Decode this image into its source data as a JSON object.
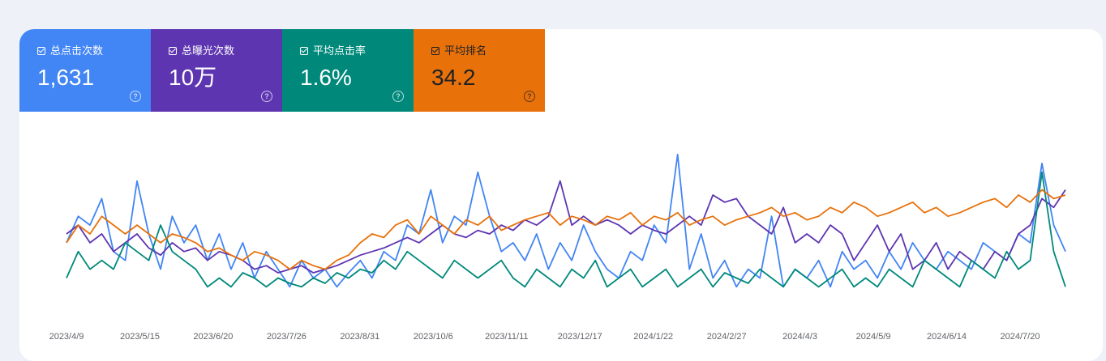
{
  "metrics": [
    {
      "label": "总点击次数",
      "value": "1,631",
      "color": "#4285f4",
      "text_dark": false
    },
    {
      "label": "总曝光次数",
      "value": "10万",
      "color": "#5e35b1",
      "text_dark": false
    },
    {
      "label": "平均点击率",
      "value": "1.6%",
      "color": "#00897b",
      "text_dark": false
    },
    {
      "label": "平均排名",
      "value": "34.2",
      "color": "#e8710a",
      "text_dark": true
    }
  ],
  "help_icon": "?",
  "chart_data": {
    "type": "line",
    "x_start": "2023/4/9",
    "x_end": "2024/8/4",
    "x_ticks": [
      "2023/4/9",
      "2023/5/15",
      "2023/6/20",
      "2023/7/26",
      "2023/8/31",
      "2023/10/6",
      "2023/11/11",
      "2023/12/17",
      "2024/1/22",
      "2024/2/27",
      "2024/4/3",
      "2024/5/9",
      "2024/6/14",
      "2024/7/20"
    ],
    "y_axis": "hidden",
    "grid": false,
    "legend": "none",
    "series": [
      {
        "name": "总点击次数",
        "color": "#4285f4",
        "points": [
          0.45,
          0.6,
          0.55,
          0.7,
          0.4,
          0.35,
          0.8,
          0.5,
          0.3,
          0.6,
          0.45,
          0.55,
          0.35,
          0.5,
          0.3,
          0.45,
          0.25,
          0.4,
          0.3,
          0.2,
          0.35,
          0.25,
          0.3,
          0.2,
          0.28,
          0.35,
          0.25,
          0.4,
          0.35,
          0.55,
          0.5,
          0.75,
          0.45,
          0.6,
          0.55,
          0.85,
          0.6,
          0.4,
          0.45,
          0.35,
          0.5,
          0.3,
          0.45,
          0.35,
          0.55,
          0.4,
          0.3,
          0.25,
          0.4,
          0.35,
          0.55,
          0.45,
          0.95,
          0.3,
          0.5,
          0.25,
          0.35,
          0.2,
          0.3,
          0.25,
          0.6,
          0.2,
          0.3,
          0.25,
          0.35,
          0.2,
          0.4,
          0.3,
          0.35,
          0.25,
          0.4,
          0.3,
          0.45,
          0.35,
          0.3,
          0.4,
          0.35,
          0.3,
          0.45,
          0.4,
          0.35,
          0.5,
          0.45,
          0.9,
          0.55,
          0.4
        ]
      },
      {
        "name": "总曝光次数",
        "color": "#5e35b1",
        "points": [
          0.5,
          0.55,
          0.45,
          0.5,
          0.4,
          0.45,
          0.5,
          0.42,
          0.38,
          0.45,
          0.4,
          0.42,
          0.35,
          0.4,
          0.38,
          0.35,
          0.3,
          0.32,
          0.28,
          0.3,
          0.32,
          0.28,
          0.3,
          0.32,
          0.35,
          0.38,
          0.4,
          0.42,
          0.45,
          0.48,
          0.45,
          0.5,
          0.55,
          0.5,
          0.48,
          0.52,
          0.5,
          0.55,
          0.52,
          0.58,
          0.55,
          0.6,
          0.8,
          0.55,
          0.6,
          0.55,
          0.58,
          0.55,
          0.5,
          0.55,
          0.52,
          0.5,
          0.55,
          0.6,
          0.55,
          0.72,
          0.68,
          0.7,
          0.6,
          0.55,
          0.5,
          0.65,
          0.45,
          0.5,
          0.45,
          0.55,
          0.5,
          0.35,
          0.45,
          0.55,
          0.4,
          0.5,
          0.3,
          0.35,
          0.45,
          0.3,
          0.4,
          0.35,
          0.3,
          0.4,
          0.35,
          0.5,
          0.55,
          0.7,
          0.65,
          0.75
        ]
      },
      {
        "name": "平均点击率",
        "color": "#00897b",
        "points": [
          0.25,
          0.4,
          0.3,
          0.35,
          0.3,
          0.45,
          0.4,
          0.35,
          0.55,
          0.4,
          0.35,
          0.3,
          0.2,
          0.25,
          0.2,
          0.28,
          0.25,
          0.2,
          0.25,
          0.22,
          0.2,
          0.25,
          0.22,
          0.28,
          0.25,
          0.3,
          0.28,
          0.35,
          0.3,
          0.4,
          0.35,
          0.3,
          0.25,
          0.35,
          0.3,
          0.25,
          0.3,
          0.35,
          0.25,
          0.2,
          0.3,
          0.25,
          0.2,
          0.3,
          0.25,
          0.35,
          0.2,
          0.25,
          0.3,
          0.2,
          0.25,
          0.3,
          0.2,
          0.25,
          0.3,
          0.2,
          0.28,
          0.25,
          0.22,
          0.3,
          0.25,
          0.2,
          0.3,
          0.25,
          0.2,
          0.25,
          0.3,
          0.2,
          0.25,
          0.2,
          0.3,
          0.25,
          0.2,
          0.35,
          0.3,
          0.25,
          0.2,
          0.35,
          0.3,
          0.25,
          0.4,
          0.3,
          0.35,
          0.85,
          0.4,
          0.2
        ]
      },
      {
        "name": "平均排名",
        "color": "#e8710a",
        "points": [
          0.45,
          0.55,
          0.5,
          0.6,
          0.55,
          0.5,
          0.55,
          0.5,
          0.45,
          0.5,
          0.48,
          0.45,
          0.4,
          0.42,
          0.38,
          0.35,
          0.4,
          0.38,
          0.35,
          0.3,
          0.35,
          0.32,
          0.3,
          0.35,
          0.38,
          0.45,
          0.5,
          0.48,
          0.55,
          0.58,
          0.5,
          0.6,
          0.55,
          0.5,
          0.58,
          0.55,
          0.6,
          0.52,
          0.55,
          0.58,
          0.6,
          0.62,
          0.55,
          0.6,
          0.58,
          0.55,
          0.6,
          0.58,
          0.62,
          0.55,
          0.6,
          0.58,
          0.62,
          0.55,
          0.58,
          0.6,
          0.55,
          0.58,
          0.6,
          0.62,
          0.65,
          0.6,
          0.62,
          0.58,
          0.6,
          0.65,
          0.62,
          0.68,
          0.65,
          0.6,
          0.62,
          0.65,
          0.68,
          0.62,
          0.65,
          0.6,
          0.62,
          0.65,
          0.68,
          0.7,
          0.65,
          0.72,
          0.68,
          0.75,
          0.7,
          0.72
        ]
      }
    ]
  }
}
